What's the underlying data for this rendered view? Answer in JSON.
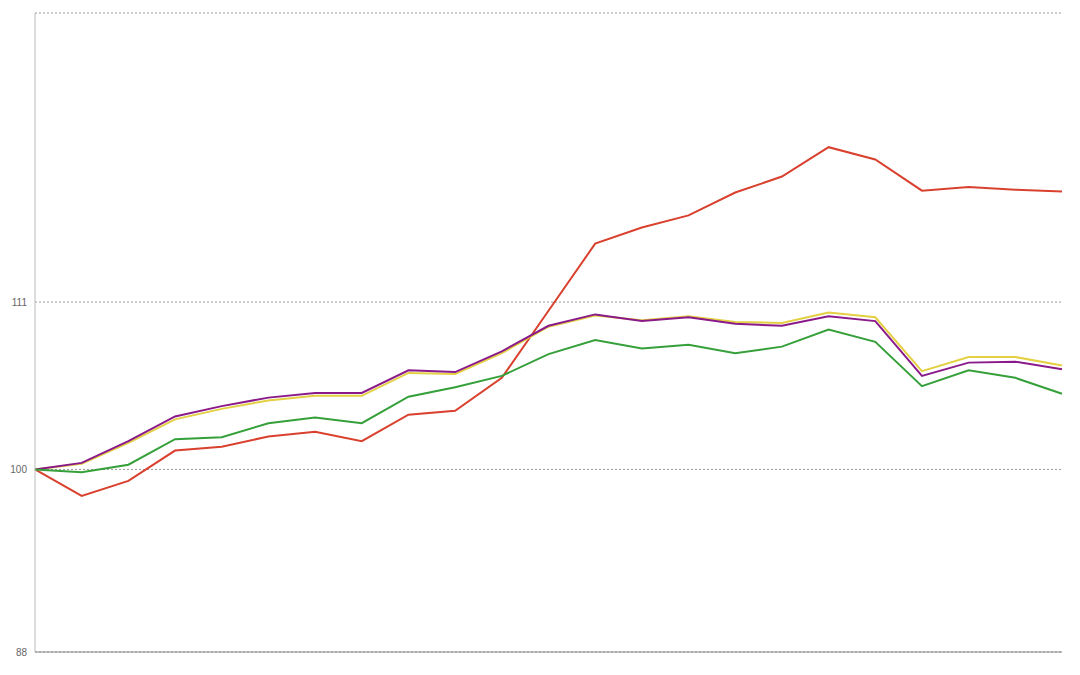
{
  "chart_data": {
    "type": "line",
    "categories": [
      null,
      null,
      null,
      null,
      null,
      null,
      null,
      null,
      null,
      null,
      null,
      null,
      null,
      null,
      null,
      null,
      null,
      null,
      null,
      null,
      null,
      null,
      null
    ],
    "series": [
      {
        "color": "#d9412e",
        "values": [
          100,
          98.26,
          99.25,
          101.24,
          101.49,
          102.17,
          102.48,
          101.86,
          103.6,
          103.85,
          106.02,
          110.43,
          114.84,
          115.9,
          116.7,
          118.2,
          119.25,
          121.18,
          120.37,
          118.32,
          118.57,
          118.39,
          118.26
        ]
      },
      {
        "color": "#e3d043",
        "values": [
          100,
          100.37,
          101.74,
          103.29,
          103.98,
          104.53,
          104.84,
          104.84,
          106.34,
          106.27,
          107.64,
          109.38,
          110.12,
          109.81,
          110.06,
          109.69,
          109.63,
          110.31,
          110.0,
          106.46,
          107.39,
          107.39,
          106.83
        ]
      },
      {
        "color": "#8a1a8a",
        "values": [
          100,
          100.43,
          101.86,
          103.48,
          104.16,
          104.72,
          105.03,
          105.03,
          106.52,
          106.4,
          107.76,
          109.44,
          110.19,
          109.75,
          110.0,
          109.57,
          109.44,
          110.06,
          109.75,
          106.15,
          107.02,
          107.08,
          106.58
        ]
      },
      {
        "color": "#35a03a",
        "values": [
          100,
          99.81,
          100.31,
          101.99,
          102.11,
          103.04,
          103.42,
          103.04,
          104.78,
          105.4,
          106.15,
          107.58,
          108.51,
          107.95,
          108.2,
          107.64,
          108.07,
          109.19,
          108.39,
          105.47,
          106.52,
          106.02,
          104.97
        ]
      }
    ],
    "ylim": [
      88,
      130
    ],
    "yticks": [
      88,
      100,
      111
    ],
    "grid": true,
    "tick_labels": "y"
  }
}
